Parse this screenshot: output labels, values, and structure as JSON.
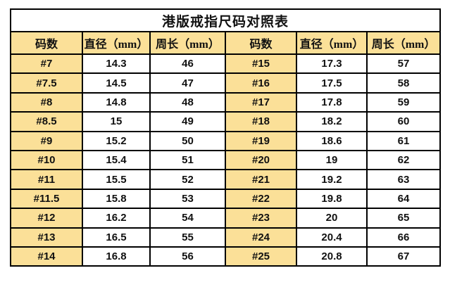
{
  "page": {
    "background": "#ffffff"
  },
  "table": {
    "title": "港版戒指尺码对照表",
    "headers": [
      "码数",
      "直径（mm）",
      "周长（mm）",
      "码数",
      "直径（mm）",
      "周长（mm）"
    ],
    "colors": {
      "header_fill": "#FBE098",
      "size_col_fill": "#FBE098",
      "value_fill": "#ffffff",
      "border": "#000000",
      "text": "#111111"
    },
    "rows": [
      [
        "#7",
        "14.3",
        "46",
        "#15",
        "17.3",
        "57"
      ],
      [
        "#7.5",
        "14.5",
        "47",
        "#16",
        "17.5",
        "58"
      ],
      [
        "#8",
        "14.8",
        "48",
        "#17",
        "17.8",
        "59"
      ],
      [
        "#8.5",
        "15",
        "49",
        "#18",
        "18.2",
        "60"
      ],
      [
        "#9",
        "15.2",
        "50",
        "#19",
        "18.6",
        "61"
      ],
      [
        "#10",
        "15.4",
        "51",
        "#20",
        "19",
        "62"
      ],
      [
        "#11",
        "15.5",
        "52",
        "#21",
        "19.2",
        "63"
      ],
      [
        "#11.5",
        "15.8",
        "53",
        "#22",
        "19.8",
        "64"
      ],
      [
        "#12",
        "16.2",
        "54",
        "#23",
        "20",
        "65"
      ],
      [
        "#13",
        "16.5",
        "55",
        "#24",
        "20.4",
        "66"
      ],
      [
        "#14",
        "16.8",
        "56",
        "#25",
        "20.8",
        "67"
      ]
    ]
  },
  "chart_data": {
    "type": "table",
    "title": "港版戒指尺码对照表",
    "columns": [
      "码数",
      "直径（mm）",
      "周长（mm）",
      "码数",
      "直径（mm）",
      "周长（mm）"
    ],
    "rows": [
      [
        "#7",
        14.3,
        46,
        "#15",
        17.3,
        57
      ],
      [
        "#7.5",
        14.5,
        47,
        "#16",
        17.5,
        58
      ],
      [
        "#8",
        14.8,
        48,
        "#17",
        17.8,
        59
      ],
      [
        "#8.5",
        15,
        49,
        "#18",
        18.2,
        60
      ],
      [
        "#9",
        15.2,
        50,
        "#19",
        18.6,
        61
      ],
      [
        "#10",
        15.4,
        51,
        "#20",
        19,
        62
      ],
      [
        "#11",
        15.5,
        52,
        "#21",
        19.2,
        63
      ],
      [
        "#11.5",
        15.8,
        53,
        "#22",
        19.8,
        64
      ],
      [
        "#12",
        16.2,
        54,
        "#23",
        20,
        65
      ],
      [
        "#13",
        16.5,
        55,
        "#24",
        20.4,
        66
      ],
      [
        "#14",
        16.8,
        56,
        "#25",
        20.8,
        67
      ]
    ],
    "layout": {
      "size_columns_highlighted": true,
      "header_fill": "#FBE098",
      "grid": true
    }
  }
}
